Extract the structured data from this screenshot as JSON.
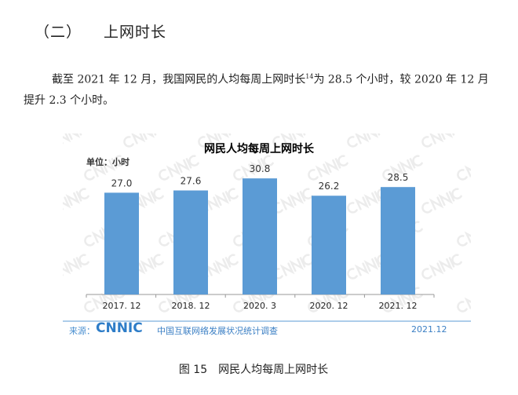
{
  "section": {
    "number": "（二）",
    "title": "上网时长"
  },
  "paragraph": {
    "line1_a": "截至 2021 年 12 月，我国网民的人均每周上网时长",
    "footnote": "14",
    "line1_b": "为 28.5 个小时，较 2020 年 12 月",
    "line2": "提升 2.3 个小时。"
  },
  "chart_data": {
    "type": "bar",
    "title": "网民人均每周上网时长",
    "unit_label": "单位：小时",
    "categories": [
      "2017. 12",
      "2018. 12",
      "2020. 3",
      "2020. 12",
      "2021. 12"
    ],
    "values": [
      27.0,
      27.6,
      30.8,
      26.2,
      28.5
    ],
    "value_labels": [
      "27.0",
      "27.6",
      "30.8",
      "26.2",
      "28.5"
    ],
    "ylim": [
      0,
      32
    ],
    "bar_color": "#5b9bd5",
    "watermark": "CNNIC"
  },
  "footer": {
    "source_label": "来源：",
    "logo": "CNNIC",
    "source_name": "中国互联网络发展状况统计调查",
    "date": "2021.12"
  },
  "caption": {
    "number": "图 15",
    "title": "网民人均每周上网时长"
  }
}
